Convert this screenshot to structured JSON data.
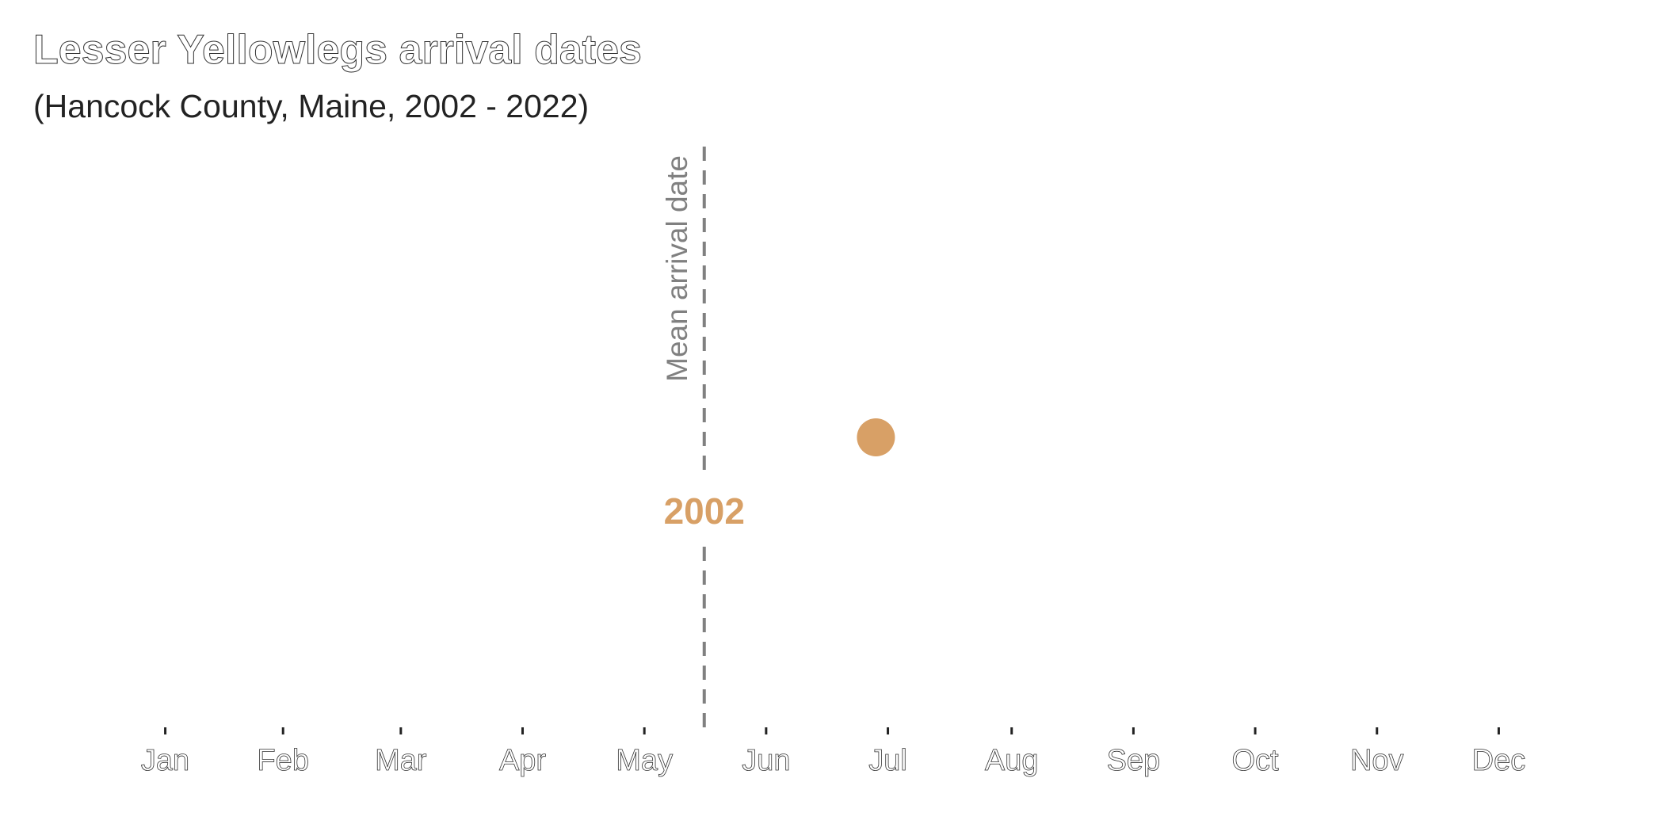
{
  "chart_data": {
    "type": "scatter",
    "title": "Lesser Yellowlegs arrival dates",
    "subtitle": "(Hancock County, Maine, 2002 - 2022)",
    "x_axis": {
      "unit": "month",
      "tick_labels": [
        "Jan",
        "Feb",
        "Mar",
        "Apr",
        "May",
        "Jun",
        "Jul",
        "Aug",
        "Sep",
        "Oct",
        "Nov",
        "Dec"
      ],
      "range": [
        "Jan 1",
        "Dec 31"
      ]
    },
    "y_axis": {
      "visible": false
    },
    "grid": false,
    "mean_line": {
      "label": "Mean arrival date",
      "date": "May 31",
      "style": "dashed",
      "color": "#808080"
    },
    "current_year_label": "2002",
    "series": [
      {
        "points": [
          {
            "year": "2002",
            "date": "Jul 13"
          }
        ],
        "color": "#d8a066"
      }
    ]
  }
}
